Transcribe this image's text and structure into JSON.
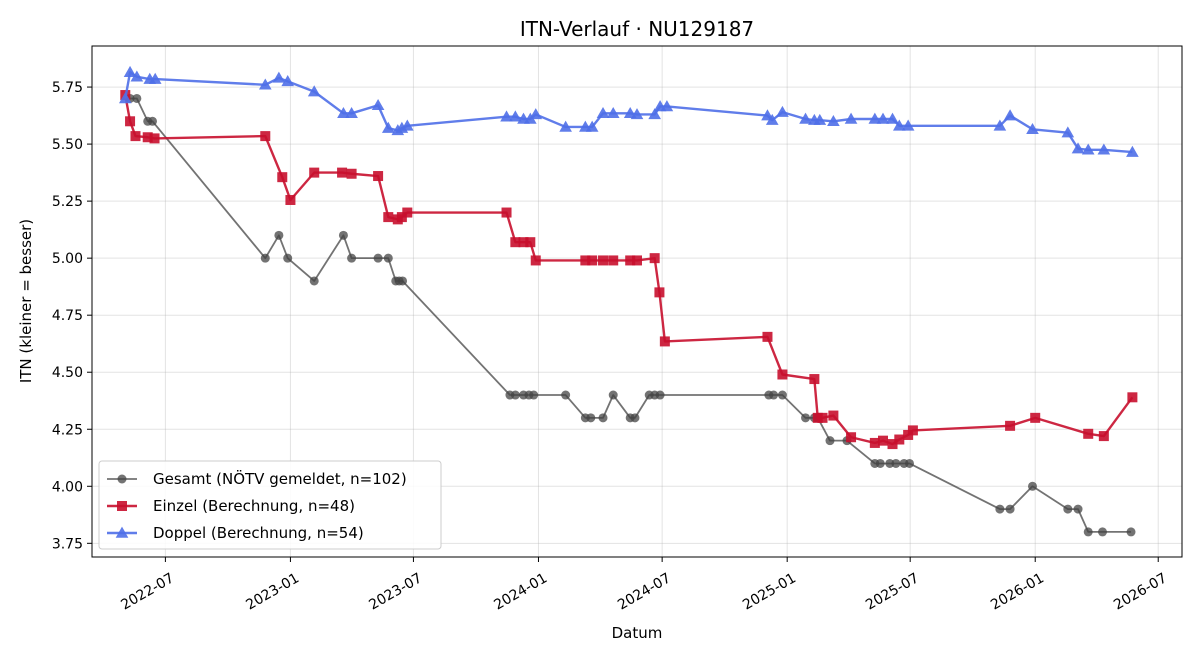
{
  "chart_data": {
    "type": "line",
    "title": "ITN-Verlauf · NU129187",
    "xlabel": "Datum",
    "ylabel": "ITN  (kleiner = besser)",
    "xlim": [
      "2022-03-15",
      "2026-08-05"
    ],
    "ylim": [
      3.69,
      5.93
    ],
    "x_ticks": [
      "2022-07",
      "2023-01",
      "2023-07",
      "2024-01",
      "2024-07",
      "2025-01",
      "2025-07",
      "2026-01",
      "2026-07"
    ],
    "y_ticks": [
      "3.75",
      "4.00",
      "4.25",
      "4.50",
      "4.75",
      "5.00",
      "5.25",
      "5.50",
      "5.75"
    ],
    "grid": true,
    "legend_position": "lower-left",
    "series": [
      {
        "name": "Gesamt (NÖTV gemeldet, n=102)",
        "color": "#444444",
        "marker": "circle",
        "points": [
          [
            "2022-05-10",
            5.7
          ],
          [
            "2022-05-20",
            5.7
          ],
          [
            "2022-06-05",
            5.6
          ],
          [
            "2022-06-12",
            5.6
          ],
          [
            "2022-11-25",
            5.0
          ],
          [
            "2022-12-15",
            5.1
          ],
          [
            "2022-12-28",
            5.0
          ],
          [
            "2023-02-05",
            4.9
          ],
          [
            "2023-03-20",
            5.1
          ],
          [
            "2023-04-01",
            5.0
          ],
          [
            "2023-05-10",
            5.0
          ],
          [
            "2023-05-25",
            5.0
          ],
          [
            "2023-06-05",
            4.9
          ],
          [
            "2023-06-10",
            4.9
          ],
          [
            "2023-06-15",
            4.9
          ],
          [
            "2023-11-20",
            4.4
          ],
          [
            "2023-11-28",
            4.4
          ],
          [
            "2023-12-10",
            4.4
          ],
          [
            "2023-12-18",
            4.4
          ],
          [
            "2023-12-25",
            4.4
          ],
          [
            "2024-02-10",
            4.4
          ],
          [
            "2024-03-10",
            4.3
          ],
          [
            "2024-03-18",
            4.3
          ],
          [
            "2024-04-05",
            4.3
          ],
          [
            "2024-04-20",
            4.4
          ],
          [
            "2024-05-15",
            4.3
          ],
          [
            "2024-05-22",
            4.3
          ],
          [
            "2024-06-12",
            4.4
          ],
          [
            "2024-06-20",
            4.4
          ],
          [
            "2024-06-28",
            4.4
          ],
          [
            "2024-12-05",
            4.4
          ],
          [
            "2024-12-12",
            4.4
          ],
          [
            "2024-12-25",
            4.4
          ],
          [
            "2025-01-28",
            4.3
          ],
          [
            "2025-02-10",
            4.3
          ],
          [
            "2025-02-15",
            4.3
          ],
          [
            "2025-03-05",
            4.2
          ],
          [
            "2025-03-30",
            4.2
          ],
          [
            "2025-05-10",
            4.1
          ],
          [
            "2025-05-18",
            4.1
          ],
          [
            "2025-06-01",
            4.1
          ],
          [
            "2025-06-10",
            4.1
          ],
          [
            "2025-06-22",
            4.1
          ],
          [
            "2025-06-30",
            4.1
          ],
          [
            "2025-11-10",
            3.9
          ],
          [
            "2025-11-25",
            3.9
          ],
          [
            "2025-12-28",
            4.0
          ],
          [
            "2026-02-18",
            3.9
          ],
          [
            "2026-03-05",
            3.9
          ],
          [
            "2026-03-20",
            3.8
          ],
          [
            "2026-04-10",
            3.8
          ],
          [
            "2026-05-22",
            3.8
          ]
        ]
      },
      {
        "name": "Einzel (Berechnung, n=48)",
        "color": "#c8102e",
        "marker": "square",
        "points": [
          [
            "2022-05-03",
            5.715
          ],
          [
            "2022-05-10",
            5.6
          ],
          [
            "2022-05-18",
            5.535
          ],
          [
            "2022-06-05",
            5.53
          ],
          [
            "2022-06-15",
            5.525
          ],
          [
            "2022-11-25",
            5.535
          ],
          [
            "2022-12-20",
            5.355
          ],
          [
            "2023-01-01",
            5.255
          ],
          [
            "2023-02-05",
            5.375
          ],
          [
            "2023-03-18",
            5.375
          ],
          [
            "2023-04-01",
            5.37
          ],
          [
            "2023-05-10",
            5.36
          ],
          [
            "2023-05-25",
            5.18
          ],
          [
            "2023-06-08",
            5.17
          ],
          [
            "2023-06-14",
            5.18
          ],
          [
            "2023-06-22",
            5.2
          ],
          [
            "2023-11-15",
            5.2
          ],
          [
            "2023-11-28",
            5.07
          ],
          [
            "2023-12-10",
            5.07
          ],
          [
            "2023-12-20",
            5.07
          ],
          [
            "2023-12-28",
            4.99
          ],
          [
            "2024-03-10",
            4.99
          ],
          [
            "2024-03-20",
            4.99
          ],
          [
            "2024-04-05",
            4.99
          ],
          [
            "2024-04-20",
            4.99
          ],
          [
            "2024-05-15",
            4.99
          ],
          [
            "2024-05-25",
            4.99
          ],
          [
            "2024-06-20",
            5.0
          ],
          [
            "2024-06-27",
            4.85
          ],
          [
            "2024-07-05",
            4.635
          ],
          [
            "2024-12-03",
            4.655
          ],
          [
            "2024-12-25",
            4.49
          ],
          [
            "2025-02-10",
            4.47
          ],
          [
            "2025-02-15",
            4.3
          ],
          [
            "2025-02-22",
            4.3
          ],
          [
            "2025-03-10",
            4.31
          ],
          [
            "2025-04-05",
            4.215
          ],
          [
            "2025-05-10",
            4.19
          ],
          [
            "2025-05-22",
            4.2
          ],
          [
            "2025-06-05",
            4.185
          ],
          [
            "2025-06-15",
            4.205
          ],
          [
            "2025-06-28",
            4.225
          ],
          [
            "2025-07-05",
            4.245
          ],
          [
            "2025-11-25",
            4.265
          ],
          [
            "2026-01-01",
            4.3
          ],
          [
            "2026-03-20",
            4.23
          ],
          [
            "2026-04-12",
            4.22
          ],
          [
            "2026-05-24",
            4.39
          ]
        ]
      },
      {
        "name": "Doppel (Berechnung, n=54)",
        "color": "#4f6fe8",
        "marker": "triangle",
        "points": [
          [
            "2022-05-03",
            5.7
          ],
          [
            "2022-05-10",
            5.815
          ],
          [
            "2022-05-20",
            5.795
          ],
          [
            "2022-06-08",
            5.785
          ],
          [
            "2022-06-16",
            5.785
          ],
          [
            "2022-11-25",
            5.76
          ],
          [
            "2022-12-15",
            5.79
          ],
          [
            "2022-12-28",
            5.775
          ],
          [
            "2023-02-05",
            5.73
          ],
          [
            "2023-03-20",
            5.635
          ],
          [
            "2023-04-01",
            5.635
          ],
          [
            "2023-05-10",
            5.67
          ],
          [
            "2023-05-25",
            5.57
          ],
          [
            "2023-06-08",
            5.56
          ],
          [
            "2023-06-14",
            5.57
          ],
          [
            "2023-06-22",
            5.58
          ],
          [
            "2023-11-15",
            5.62
          ],
          [
            "2023-11-28",
            5.62
          ],
          [
            "2023-12-10",
            5.61
          ],
          [
            "2023-12-20",
            5.61
          ],
          [
            "2023-12-28",
            5.63
          ],
          [
            "2024-02-10",
            5.575
          ],
          [
            "2024-03-10",
            5.575
          ],
          [
            "2024-03-20",
            5.575
          ],
          [
            "2024-04-05",
            5.635
          ],
          [
            "2024-04-20",
            5.635
          ],
          [
            "2024-05-15",
            5.635
          ],
          [
            "2024-05-25",
            5.63
          ],
          [
            "2024-06-20",
            5.63
          ],
          [
            "2024-06-28",
            5.665
          ],
          [
            "2024-07-08",
            5.665
          ],
          [
            "2024-12-03",
            5.625
          ],
          [
            "2024-12-10",
            5.605
          ],
          [
            "2024-12-25",
            5.64
          ],
          [
            "2025-01-28",
            5.61
          ],
          [
            "2025-02-10",
            5.605
          ],
          [
            "2025-02-18",
            5.605
          ],
          [
            "2025-03-10",
            5.6
          ],
          [
            "2025-04-05",
            5.61
          ],
          [
            "2025-05-10",
            5.61
          ],
          [
            "2025-05-22",
            5.61
          ],
          [
            "2025-06-05",
            5.61
          ],
          [
            "2025-06-15",
            5.58
          ],
          [
            "2025-06-28",
            5.58
          ],
          [
            "2025-11-10",
            5.58
          ],
          [
            "2025-11-25",
            5.625
          ],
          [
            "2025-12-28",
            5.565
          ],
          [
            "2026-02-18",
            5.55
          ],
          [
            "2026-03-05",
            5.48
          ],
          [
            "2026-03-20",
            5.475
          ],
          [
            "2026-04-12",
            5.475
          ],
          [
            "2026-05-24",
            5.465
          ]
        ]
      }
    ]
  }
}
